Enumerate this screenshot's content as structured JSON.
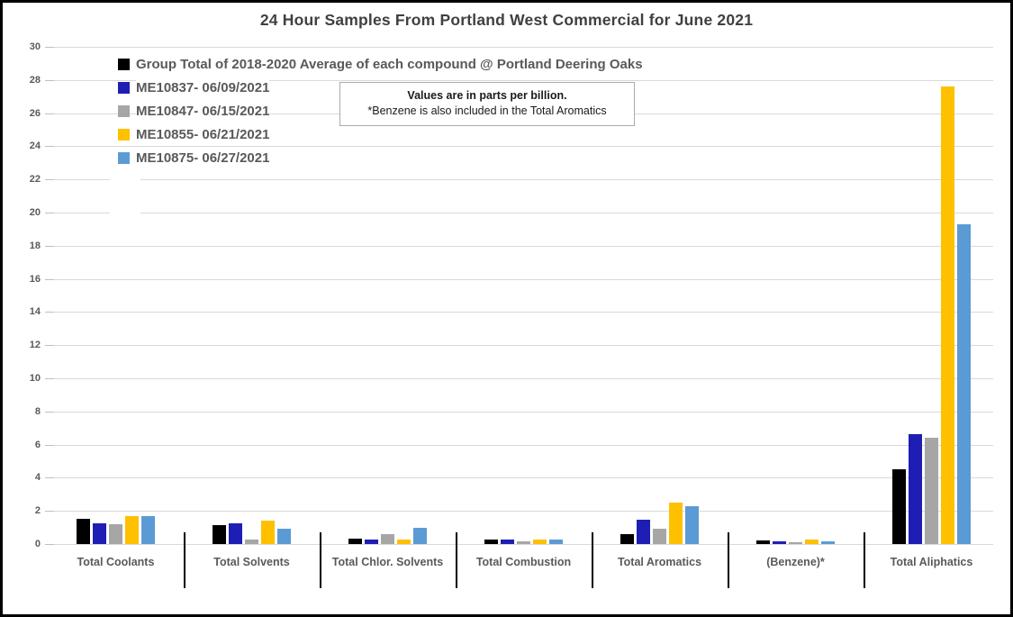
{
  "chart_data": {
    "type": "bar",
    "title": "24 Hour Samples From Portland West Commercial for June 2021",
    "xlabel": "",
    "ylabel": "",
    "units": "parts per billion",
    "ylim": [
      0,
      30
    ],
    "ytick_step": 2,
    "grid": true,
    "legend_position": "top-left",
    "categories": [
      "Total Coolants",
      "Total Solvents",
      "Total Chlor. Solvents",
      "Total Combustion",
      "Total Aromatics",
      "(Benzene)*",
      "Total Aliphatics"
    ],
    "series": [
      {
        "name": "Group Total of 2018-2020 Average of each compound @ Portland Deering Oaks",
        "color": "#000000",
        "values": [
          1.55,
          1.15,
          0.35,
          0.25,
          0.6,
          0.2,
          4.5
        ]
      },
      {
        "name": "ME10837- 06/09/2021",
        "color": "#1e1eb4",
        "values": [
          1.25,
          1.25,
          0.25,
          0.3,
          1.45,
          0.15,
          6.65
        ]
      },
      {
        "name": "ME10847- 06/15/2021",
        "color": "#a6a6a6",
        "values": [
          1.2,
          0.3,
          0.6,
          0.15,
          0.95,
          0.1,
          6.4
        ]
      },
      {
        "name": "ME10855- 06/21/2021",
        "color": "#ffc000",
        "values": [
          1.7,
          1.4,
          0.25,
          0.3,
          2.5,
          0.3,
          27.6
        ]
      },
      {
        "name": "ME10875- 06/27/2021",
        "color": "#5b9bd5",
        "values": [
          1.7,
          0.9,
          1.0,
          0.3,
          2.3,
          0.15,
          19.3
        ]
      }
    ]
  },
  "annotation": {
    "line1": "Values are in parts per billion.",
    "line2": "*Benzene is also included in the Total Aromatics"
  },
  "colors": {
    "title_text": "#404040",
    "axis_text": "#595959",
    "gridline": "#d9d9d9",
    "separator": "#000000",
    "background": "#ffffff",
    "border": "#000000"
  }
}
